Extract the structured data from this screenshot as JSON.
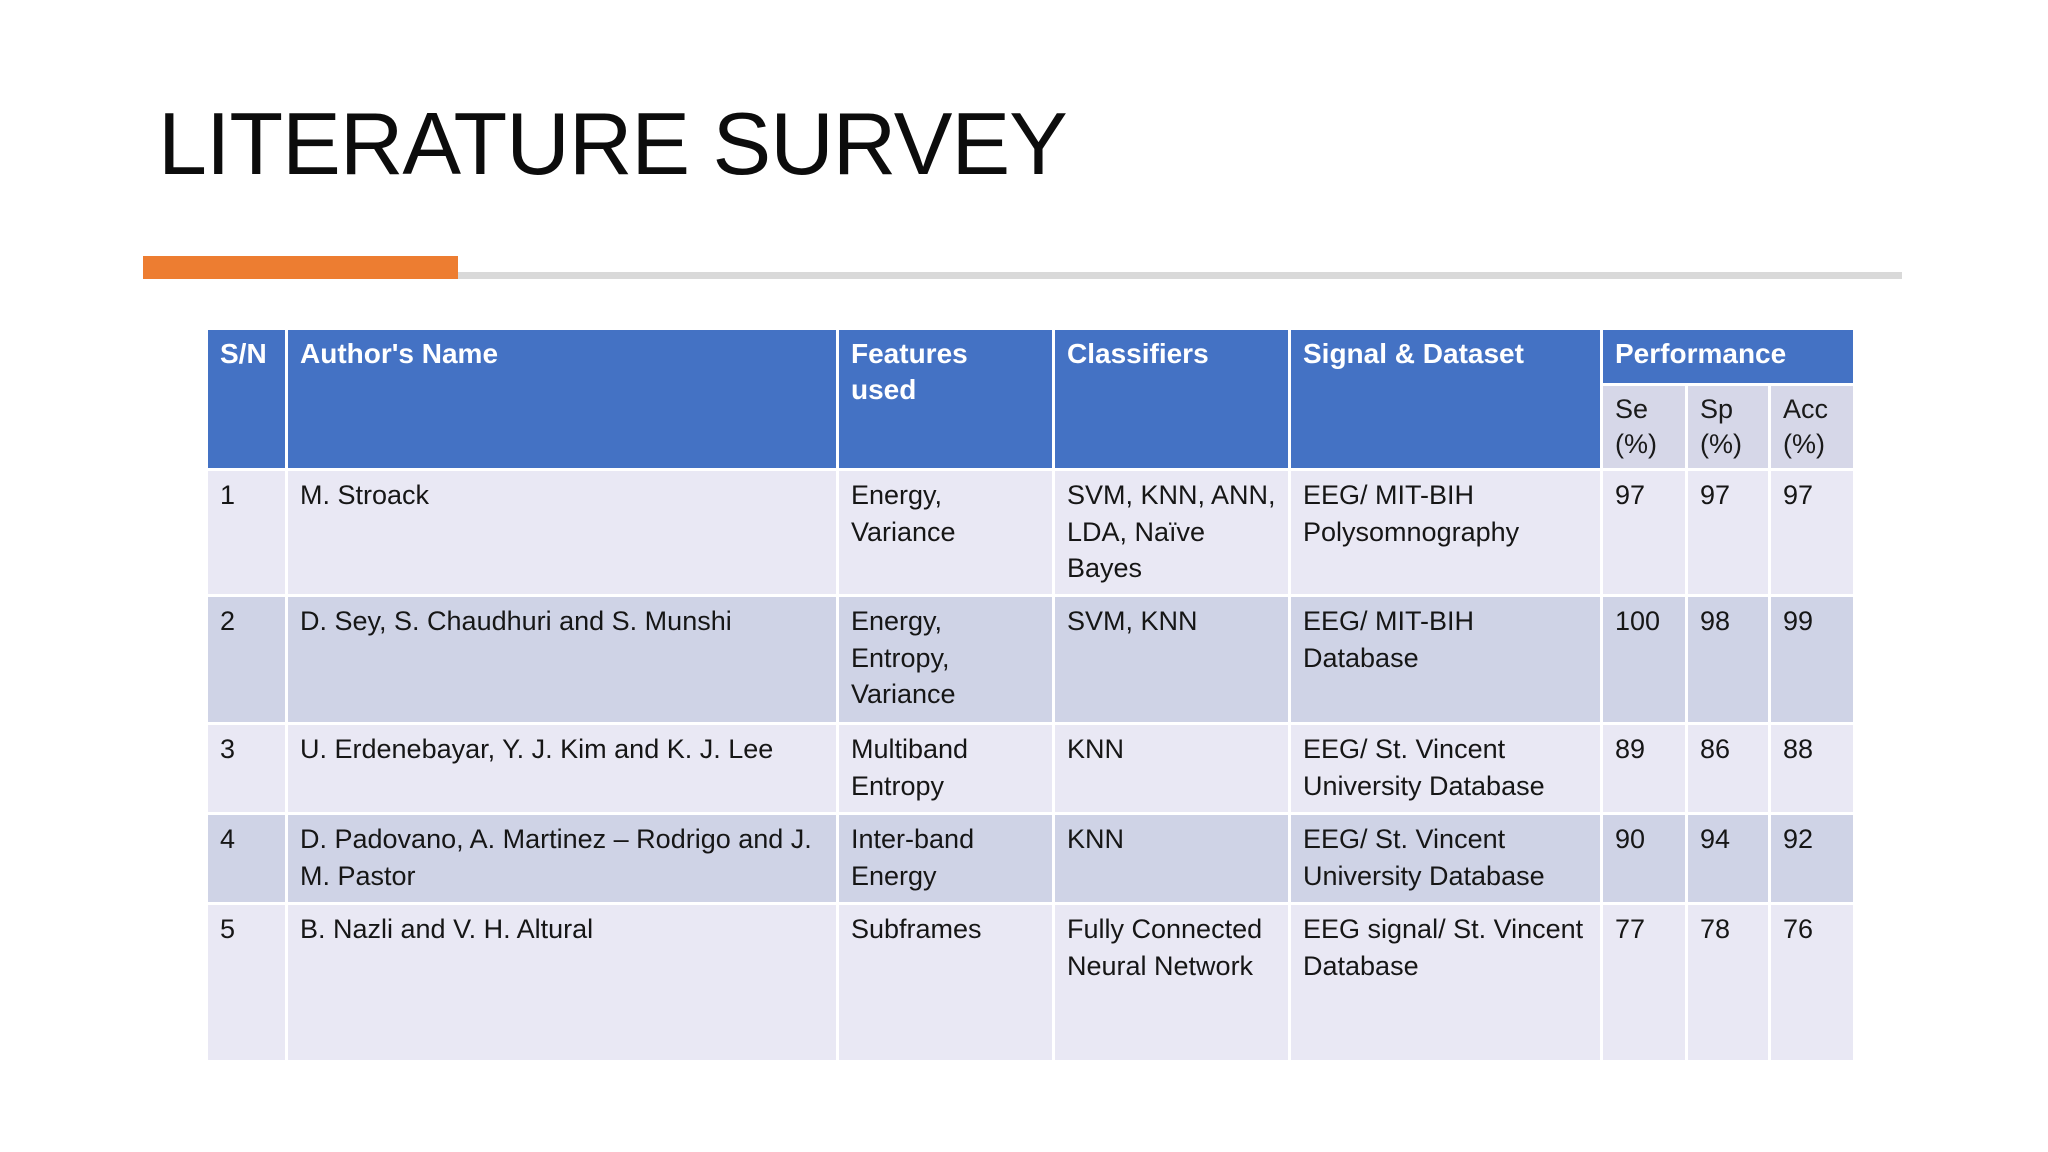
{
  "slide": {
    "title": "LITERATURE SURVEY"
  },
  "decor": {
    "accent_bar_color": "#ED7D31",
    "divider_line_color": "#D9D9D9"
  },
  "table": {
    "colors": {
      "header_bg": "#4472C4",
      "header_text": "#FFFFFF",
      "subheader_bg": "#D6D7E8",
      "row_odd_bg": "#E9E8F4",
      "row_even_bg": "#CFD3E6",
      "body_text": "#161616"
    },
    "headers": {
      "sn": "S/N",
      "author": "Author's Name",
      "features": "Features used",
      "classifiers": "Classifiers",
      "signal_dataset": "Signal & Dataset",
      "performance": "Performance",
      "se": "Se (%)",
      "sp": "Sp (%)",
      "acc": "Acc (%)"
    },
    "rows": [
      {
        "cells": [
          "1",
          "M. Stroack",
          "Energy, Variance",
          "SVM, KNN, ANN, LDA, Naïve Bayes",
          "EEG/ MIT-BIH Polysomnography",
          "97",
          "97",
          "97"
        ]
      },
      {
        "cells": [
          "2",
          "D. Sey, S. Chaudhuri and S. Munshi",
          "Energy, Entropy, Variance",
          "SVM, KNN",
          "EEG/ MIT-BIH Database",
          "100",
          "98",
          "99"
        ]
      },
      {
        "cells": [
          "3",
          "U. Erdenebayar, Y. J. Kim and K. J. Lee",
          "Multiband Entropy",
          "KNN",
          "EEG/ St. Vincent University Database",
          "89",
          "86",
          "88"
        ]
      },
      {
        "cells": [
          "4",
          "D. Padovano, A. Martinez – Rodrigo and J. M. Pastor",
          "Inter-band Energy",
          "KNN",
          "EEG/ St. Vincent University Database",
          "90",
          "94",
          "92"
        ]
      },
      {
        "cells": [
          "5",
          "B. Nazli and V. H. Altural",
          "Subframes",
          "Fully Connected Neural Network",
          "EEG signal/ St. Vincent Database",
          "77",
          "78",
          "76"
        ]
      }
    ]
  }
}
